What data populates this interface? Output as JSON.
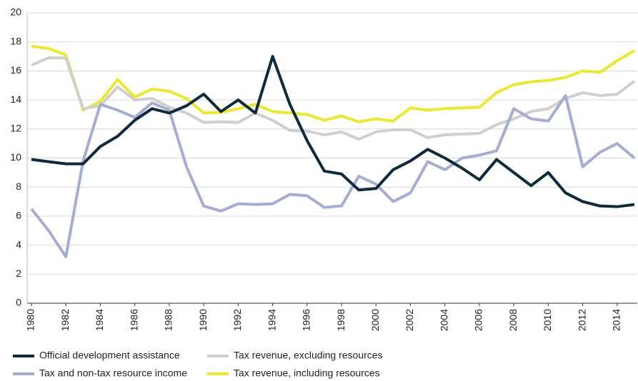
{
  "chart_data": {
    "type": "line",
    "x": [
      1980,
      1981,
      1982,
      1983,
      1984,
      1985,
      1986,
      1987,
      1988,
      1989,
      1990,
      1991,
      1992,
      1993,
      1994,
      1995,
      1996,
      1997,
      1998,
      1999,
      2000,
      2001,
      2002,
      2003,
      2004,
      2005,
      2006,
      2007,
      2008,
      2009,
      2010,
      2011,
      2012,
      2013,
      2014,
      2015
    ],
    "xlim": [
      1980,
      2015
    ],
    "xticks": [
      1980,
      1982,
      1984,
      1986,
      1988,
      1990,
      1992,
      1994,
      1996,
      1998,
      2000,
      2002,
      2004,
      2006,
      2008,
      2010,
      2012,
      2014
    ],
    "ylim": [
      0,
      20
    ],
    "yticks": [
      0,
      2,
      4,
      6,
      8,
      10,
      12,
      14,
      16,
      18,
      20
    ],
    "grid": true,
    "legend": "bottom",
    "series": [
      {
        "name": "Official development assistance",
        "color": "#0d2b3a",
        "values": [
          9.9,
          9.75,
          9.6,
          9.6,
          10.8,
          11.5,
          12.6,
          13.4,
          13.1,
          13.6,
          14.4,
          13.2,
          14.0,
          13.1,
          17.0,
          13.7,
          11.2,
          9.1,
          8.9,
          7.8,
          7.9,
          9.2,
          9.8,
          10.6,
          10.0,
          9.3,
          8.5,
          9.9,
          9.0,
          8.1,
          9.0,
          7.6,
          7.0,
          6.7,
          6.65,
          6.8
        ]
      },
      {
        "name": "Tax and non-tax resource income",
        "color": "#a5acd6",
        "values": [
          6.5,
          5.0,
          3.2,
          9.8,
          13.7,
          13.3,
          12.8,
          13.8,
          13.3,
          9.4,
          6.7,
          6.35,
          6.85,
          6.8,
          6.85,
          7.5,
          7.4,
          6.6,
          6.7,
          8.75,
          8.2,
          7.0,
          7.6,
          9.75,
          9.2,
          10.0,
          10.2,
          10.5,
          13.4,
          12.7,
          12.55,
          14.3,
          9.4,
          10.4,
          11.0,
          10.0
        ]
      },
      {
        "name": "Tax revenue, excluding resources",
        "color": "#cfcfcf",
        "values": [
          16.4,
          16.9,
          16.9,
          13.4,
          13.6,
          14.9,
          14.0,
          14.1,
          13.5,
          13.1,
          12.45,
          12.5,
          12.45,
          13.1,
          12.6,
          11.9,
          11.85,
          11.6,
          11.8,
          11.3,
          11.8,
          11.95,
          11.95,
          11.4,
          11.6,
          11.65,
          11.7,
          12.3,
          12.7,
          13.2,
          13.4,
          14.1,
          14.5,
          14.3,
          14.4,
          15.3
        ]
      },
      {
        "name": "Tax revenue, including resources",
        "color": "#eee82c",
        "values": [
          17.7,
          17.55,
          17.1,
          13.3,
          13.9,
          15.4,
          14.2,
          14.75,
          14.6,
          14.1,
          13.1,
          13.15,
          13.4,
          13.7,
          13.2,
          13.1,
          13.0,
          12.6,
          12.9,
          12.5,
          12.7,
          12.55,
          13.45,
          13.3,
          13.4,
          13.45,
          13.5,
          14.5,
          15.05,
          15.25,
          15.35,
          15.55,
          16.0,
          15.9,
          16.7,
          17.4
        ]
      }
    ]
  }
}
